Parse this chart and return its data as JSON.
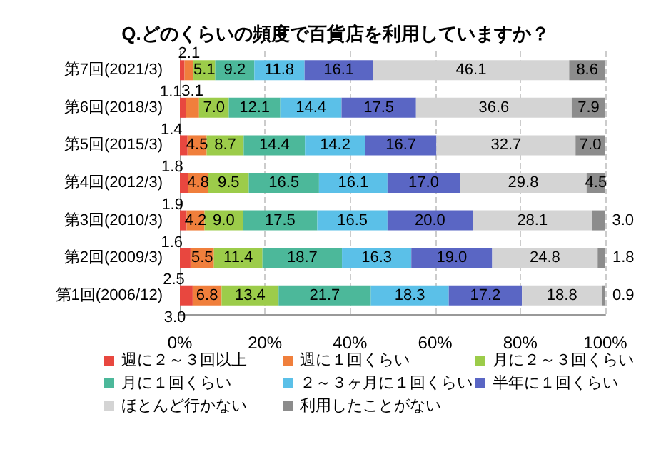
{
  "chart_data": {
    "type": "bar",
    "orientation": "horizontal",
    "stacked": true,
    "title": "Q.どのくらいの頻度で百貨店を利用していますか？",
    "categories": [
      "第7回(2021/3)",
      "第6回(2018/3)",
      "第5回(2015/3)",
      "第4回(2012/3)",
      "第3回(2010/3)",
      "第2回(2009/3)",
      "第1回(2006/12)"
    ],
    "series": [
      {
        "name": "週に２～３回以上",
        "color": "#e8473f",
        "values": [
          1.1,
          1.4,
          1.8,
          1.9,
          1.6,
          2.5,
          3.0
        ],
        "value_labels": [
          "1.1",
          "1.4",
          "1.8",
          "1.9",
          "1.6",
          "2.5",
          "3.0"
        ]
      },
      {
        "name": "週に１回くらい",
        "color": "#f07f3c",
        "values": [
          2.1,
          3.1,
          4.5,
          4.8,
          4.2,
          5.5,
          6.8
        ],
        "value_labels": [
          "2.1",
          "3.1",
          "4.5",
          "4.8",
          "4.2",
          "5.5",
          "6.8"
        ]
      },
      {
        "name": "月に２～３回くらい",
        "color": "#9ccc4a",
        "values": [
          5.1,
          7.0,
          8.7,
          9.5,
          9.0,
          11.4,
          13.4
        ],
        "value_labels": [
          "5.1",
          "7.0",
          "8.7",
          "9.5",
          "9.0",
          "11.4",
          "13.4"
        ]
      },
      {
        "name": "月に１回くらい",
        "color": "#4cb89a",
        "values": [
          9.2,
          12.1,
          14.4,
          16.5,
          17.5,
          18.7,
          21.7
        ],
        "value_labels": [
          "9.2",
          "12.1",
          "14.4",
          "16.5",
          "17.5",
          "18.7",
          "21.7"
        ]
      },
      {
        "name": "２～３ヶ月に１回くらい",
        "color": "#5bc0e8",
        "values": [
          11.8,
          14.4,
          14.2,
          16.1,
          16.5,
          16.3,
          18.3
        ],
        "value_labels": [
          "11.8",
          "14.4",
          "14.2",
          "16.1",
          "16.5",
          "16.3",
          "18.3"
        ]
      },
      {
        "name": "半年に１回くらい",
        "color": "#5a66c4",
        "values": [
          16.1,
          17.5,
          16.7,
          17.0,
          20.0,
          19.0,
          17.2
        ],
        "value_labels": [
          "16.1",
          "17.5",
          "16.7",
          "17.0",
          "20.0",
          "19.0",
          "17.2"
        ]
      },
      {
        "name": "ほとんど行かない",
        "color": "#d4d4d4",
        "values": [
          46.1,
          36.6,
          32.7,
          29.8,
          28.1,
          24.8,
          18.8
        ],
        "value_labels": [
          "46.1",
          "36.6",
          "32.7",
          "29.8",
          "28.1",
          "24.8",
          "18.8"
        ]
      },
      {
        "name": "利用したことがない",
        "color": "#8c8c8c",
        "values": [
          8.6,
          7.9,
          7.0,
          4.5,
          3.0,
          1.8,
          0.9
        ],
        "value_labels": [
          "8.6",
          "7.9",
          "7.0",
          "4.5",
          "3.0",
          "1.8",
          "0.9"
        ]
      }
    ],
    "xlim": [
      0,
      100
    ],
    "xticks": [
      {
        "value": 0,
        "label": "0%"
      },
      {
        "value": 20,
        "label": "20%"
      },
      {
        "value": 40,
        "label": "40%"
      },
      {
        "value": 60,
        "label": "60%"
      },
      {
        "value": 80,
        "label": "80%"
      },
      {
        "value": 100,
        "label": "100%"
      }
    ],
    "grid": "x",
    "legend": "bottom"
  }
}
